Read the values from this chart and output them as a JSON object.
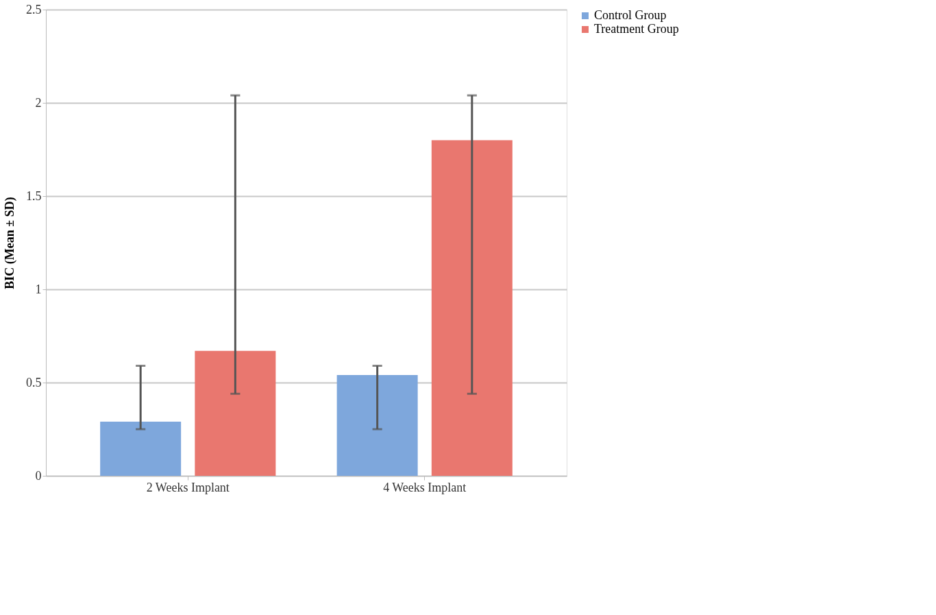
{
  "chart_data": {
    "type": "bar",
    "ylabel": "BIC (Mean ± SD)",
    "categories": [
      "2 Weeks Implant",
      "4 Weeks Implant"
    ],
    "series": [
      {
        "name": "Control Group",
        "color": "#7ea7dc",
        "values": [
          0.29,
          0.54
        ],
        "errors": [
          [
            0.25,
            0.59
          ],
          [
            0.25,
            0.59
          ]
        ]
      },
      {
        "name": "Treatment Group",
        "color": "#e9776f",
        "values": [
          0.67,
          1.8
        ],
        "errors": [
          [
            0.44,
            2.04
          ],
          [
            0.44,
            2.04
          ]
        ]
      }
    ],
    "ylim": [
      0,
      2.5
    ],
    "yticks": [
      0,
      0.5,
      1,
      1.5,
      2,
      2.5
    ],
    "grid": "y",
    "legend": "right"
  }
}
